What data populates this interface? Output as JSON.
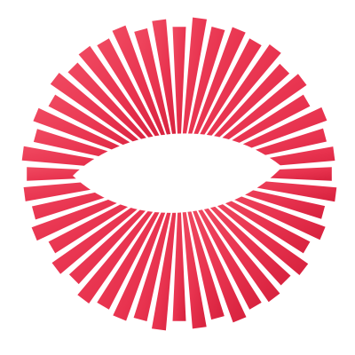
{
  "logo": {
    "name": "eye-sunburst-logo",
    "colors": {
      "primary": "#e8334f",
      "light": "#f04a61",
      "dark": "#d6213d",
      "background": "#ffffff"
    },
    "ray_count": 48
  }
}
